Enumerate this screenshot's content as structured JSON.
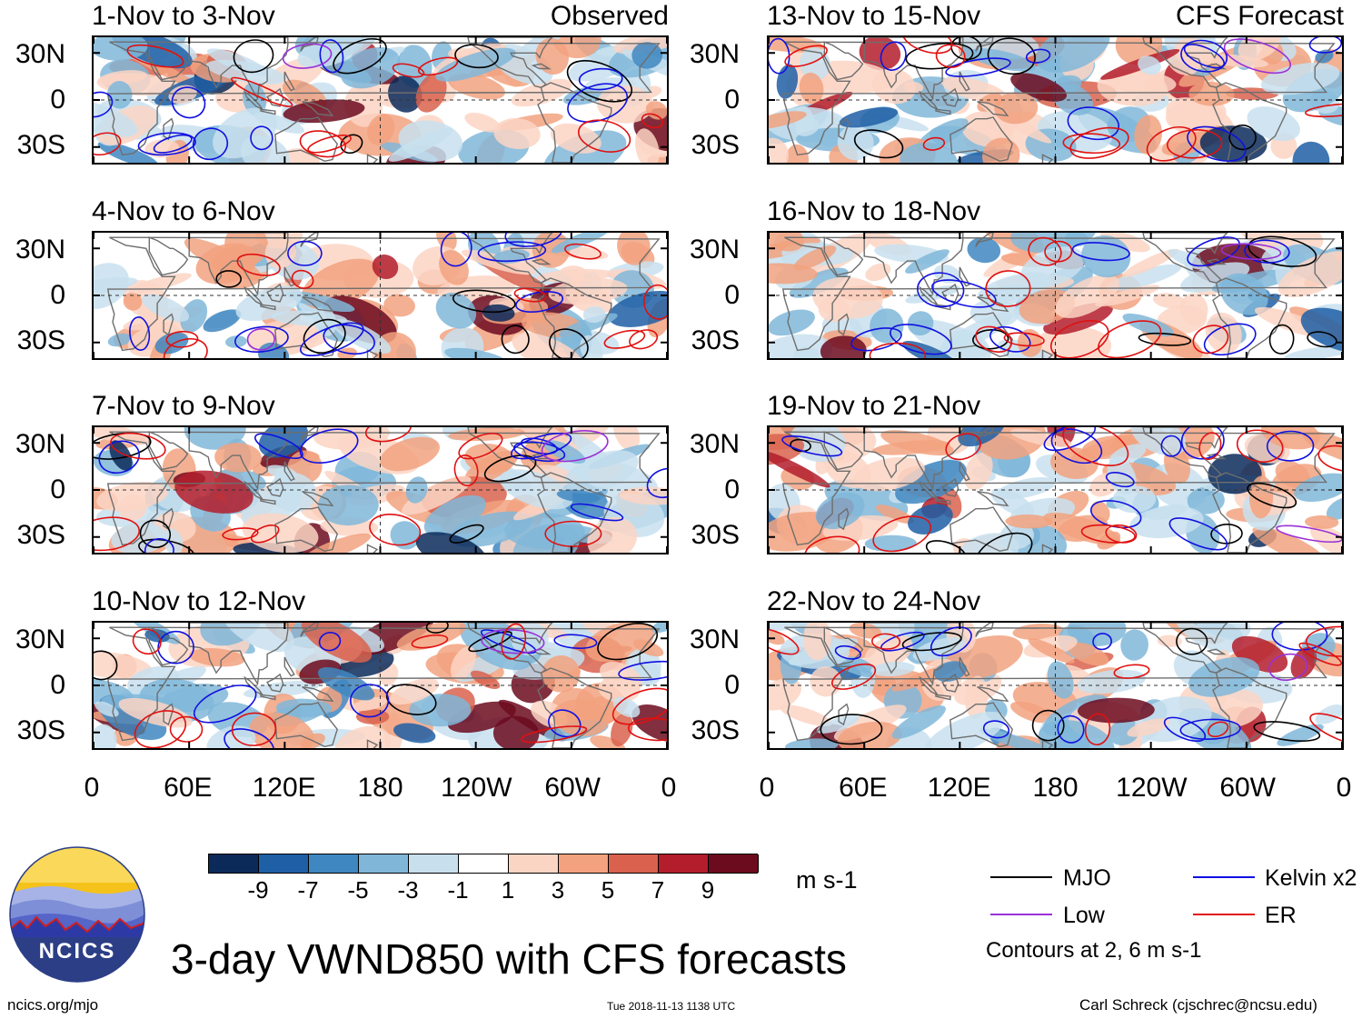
{
  "chart_data": {
    "type": "heatmap",
    "title": "3-day VWND850 with CFS forecasts",
    "variable": "VWND850",
    "units": "m s-1",
    "x_ticks": [
      "0",
      "60E",
      "120E",
      "180",
      "120W",
      "60W",
      "0"
    ],
    "y_ticks": [
      "30N",
      "0",
      "30S"
    ],
    "x_range_deg": [
      0,
      360
    ],
    "y_range_deg": [
      -40,
      40
    ],
    "colorbar": {
      "ticks": [
        "-9",
        "-7",
        "-5",
        "-3",
        "-1",
        "1",
        "3",
        "5",
        "7",
        "9"
      ],
      "levels": [
        -11,
        -9,
        -7,
        -5,
        -3,
        -1,
        1,
        3,
        5,
        7,
        9,
        11
      ],
      "colors": [
        "#0b2a5a",
        "#1f5fa6",
        "#3f87c1",
        "#80b7d9",
        "#c8e0ee",
        "#ffffff",
        "#fbd5c4",
        "#f2a27f",
        "#d9614d",
        "#b31d2c",
        "#6c0a1e"
      ]
    },
    "legend": {
      "items": [
        {
          "label": "MJO",
          "color": "#000000"
        },
        {
          "label": "Kelvin x2",
          "color": "#1010e0"
        },
        {
          "label": "Low",
          "color": "#9b30d8"
        },
        {
          "label": "ER",
          "color": "#e01010"
        }
      ],
      "note": "Contours at 2, 6 m s-1"
    },
    "panels": [
      {
        "title": "1-Nov to 3-Nov",
        "tag": "Observed",
        "column": "left",
        "row": 0
      },
      {
        "title": "4-Nov to 6-Nov",
        "tag": "",
        "column": "left",
        "row": 1
      },
      {
        "title": "7-Nov to 9-Nov",
        "tag": "",
        "column": "left",
        "row": 2
      },
      {
        "title": "10-Nov to 12-Nov",
        "tag": "",
        "column": "left",
        "row": 3
      },
      {
        "title": "13-Nov to 15-Nov",
        "tag": "CFS Forecast",
        "column": "right",
        "row": 0
      },
      {
        "title": "16-Nov to 18-Nov",
        "tag": "",
        "column": "right",
        "row": 1
      },
      {
        "title": "19-Nov to 21-Nov",
        "tag": "",
        "column": "right",
        "row": 2
      },
      {
        "title": "22-Nov to 24-Nov",
        "tag": "",
        "column": "right",
        "row": 3
      }
    ]
  },
  "logo": {
    "text": "NCICS"
  },
  "footer": {
    "website": "ncics.org/mjo",
    "timestamp": "Tue 2018-11-13 1138 UTC",
    "credit": "Carl Schreck (cjschrec@ncsu.edu)"
  }
}
